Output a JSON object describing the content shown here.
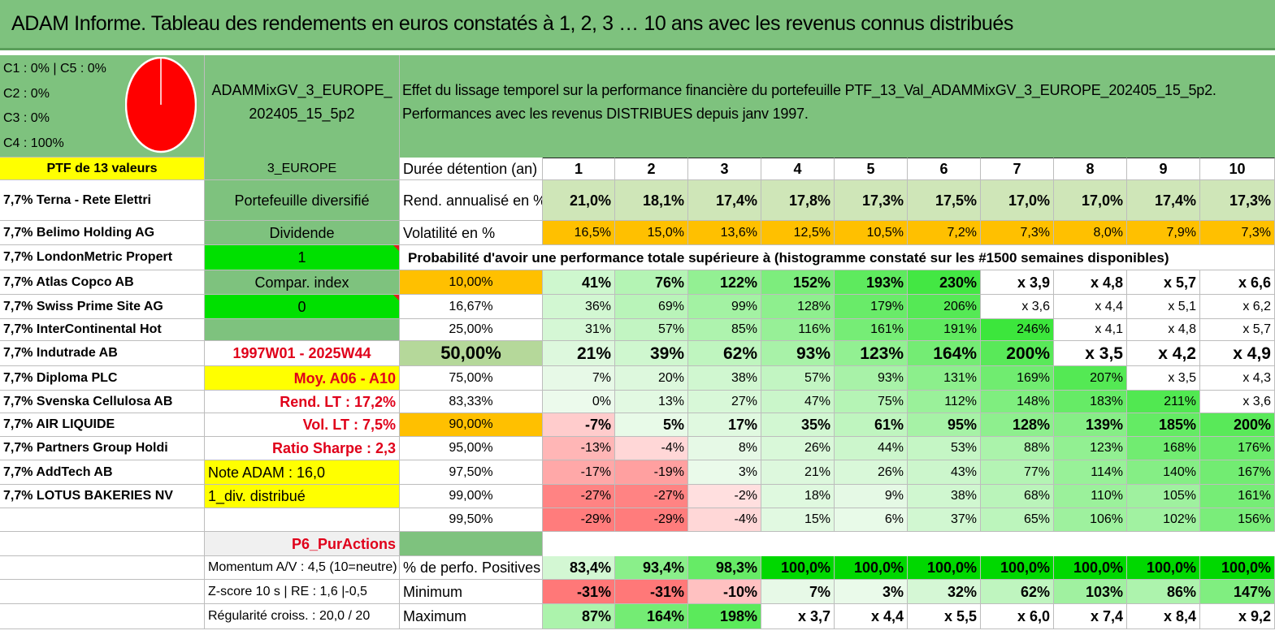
{
  "title": "ADAM Informe. Tableau des rendements en euros constatés à 1, 2, 3 … 10 ans avec les revenus connus distribués",
  "pie_legend": [
    "C1 : 0% | C5 : 0%",
    "C2 : 0%",
    "C3 : 0%",
    "C4 : 100%"
  ],
  "pie_chart": {
    "slices": [
      {
        "name": "C4",
        "value": 100,
        "color": "#ff0000"
      }
    ]
  },
  "portfolio_name": "ADAMMixGV_3_EUROPE_202405_15_5p2",
  "description": "Effet du lissage temporel sur la performance financière du portefeuille PTF_13_Val_ADAMMixGV_3_EUROPE_202405_15_5p2. Performances avec les revenus DISTRIBUES depuis janv 1997.",
  "col_a": {
    "header": "PTF de 13 valeurs",
    "holdings": [
      "7,7% Terna - Rete Elettri",
      "7,7% Belimo Holding AG",
      "7,7% LondonMetric Propert",
      "7,7% Atlas Copco AB",
      "7,7% Swiss Prime Site AG",
      "7,7% InterContinental Hot",
      "7,7% Indutrade AB",
      "7,7% Diploma PLC",
      "7,7% Svenska Cellulosa AB",
      "7,7% AIR LIQUIDE",
      "7,7% Partners Group Holdi",
      "7,7% AddTech AB",
      "7,7% LOTUS BAKERIES NV"
    ]
  },
  "col_b": {
    "zone": "3_EUROPE",
    "diversification": "Portefeuille diversifié",
    "dividend_label": "Dividende",
    "dividend_value": "1",
    "compar_label": "Compar. index",
    "compar_value": "0",
    "period": "1997W01 - 2025W44",
    "moy": "Moy. A06 - A10",
    "rend_lt": "Rend. LT : 17,2%",
    "vol_lt": "Vol. LT : 7,5%",
    "sharpe": "Ratio Sharpe : 2,3",
    "note": "Note ADAM : 16,0",
    "div": "1_div. distribué",
    "strategy": "P6_PurActions",
    "momentum": "Momentum A/V : 4,5 (10=neutre)",
    "zscore": "Z-score 10 s | RE : 1,6 |-0,5",
    "regularite": "Régularité croiss. : 20,0 / 20"
  },
  "table": {
    "duration_label": "Durée détention (an)",
    "years": [
      "1",
      "2",
      "3",
      "4",
      "5",
      "6",
      "7",
      "8",
      "9",
      "10"
    ],
    "rend_label": "Rend. annualisé en %",
    "rend": [
      "21,0%",
      "18,1%",
      "17,4%",
      "17,8%",
      "17,3%",
      "17,5%",
      "17,0%",
      "17,0%",
      "17,4%",
      "17,3%"
    ],
    "vol_label": "Volatilité en %",
    "vol": [
      "16,5%",
      "15,0%",
      "13,6%",
      "12,5%",
      "10,5%",
      "7,2%",
      "7,3%",
      "8,0%",
      "7,9%",
      "7,3%"
    ],
    "proba_title": "Probabilité d'avoir une performance totale supérieure à (histogramme constaté sur les #1500 semaines disponibles)",
    "quantiles": [
      {
        "q": "10,00%",
        "v": [
          "41%",
          "76%",
          "122%",
          "152%",
          "193%",
          "230%",
          "x 3,9",
          "x 4,8",
          "x 5,7",
          "x 6,6"
        ]
      },
      {
        "q": "16,67%",
        "v": [
          "36%",
          "69%",
          "99%",
          "128%",
          "179%",
          "206%",
          "x 3,6",
          "x 4,4",
          "x 5,1",
          "x 6,2"
        ]
      },
      {
        "q": "25,00%",
        "v": [
          "31%",
          "57%",
          "85%",
          "116%",
          "161%",
          "191%",
          "246%",
          "x 4,1",
          "x 4,8",
          "x 5,7"
        ]
      },
      {
        "q": "50,00%",
        "v": [
          "21%",
          "39%",
          "62%",
          "93%",
          "123%",
          "164%",
          "200%",
          "x 3,5",
          "x 4,2",
          "x 4,9"
        ]
      },
      {
        "q": "75,00%",
        "v": [
          "7%",
          "20%",
          "38%",
          "57%",
          "93%",
          "131%",
          "169%",
          "207%",
          "x 3,5",
          "x 4,3"
        ]
      },
      {
        "q": "83,33%",
        "v": [
          "0%",
          "13%",
          "27%",
          "47%",
          "75%",
          "112%",
          "148%",
          "183%",
          "211%",
          "x 3,6"
        ]
      },
      {
        "q": "90,00%",
        "v": [
          "-7%",
          "5%",
          "17%",
          "35%",
          "61%",
          "95%",
          "128%",
          "139%",
          "185%",
          "200%"
        ]
      },
      {
        "q": "95,00%",
        "v": [
          "-13%",
          "-4%",
          "8%",
          "26%",
          "44%",
          "53%",
          "88%",
          "123%",
          "168%",
          "176%"
        ]
      },
      {
        "q": "97,50%",
        "v": [
          "-17%",
          "-19%",
          "3%",
          "21%",
          "26%",
          "43%",
          "77%",
          "114%",
          "140%",
          "167%"
        ]
      },
      {
        "q": "99,00%",
        "v": [
          "-27%",
          "-27%",
          "-2%",
          "18%",
          "9%",
          "38%",
          "68%",
          "110%",
          "105%",
          "161%"
        ]
      },
      {
        "q": "99,50%",
        "v": [
          "-29%",
          "-29%",
          "-4%",
          "15%",
          "6%",
          "37%",
          "65%",
          "106%",
          "102%",
          "156%"
        ]
      }
    ],
    "positive_label": "% de perfo. Positives",
    "positive": [
      "83,4%",
      "93,4%",
      "98,3%",
      "100,0%",
      "100,0%",
      "100,0%",
      "100,0%",
      "100,0%",
      "100,0%",
      "100,0%"
    ],
    "min_label": "Minimum",
    "min": [
      "-31%",
      "-31%",
      "-10%",
      "7%",
      "3%",
      "32%",
      "62%",
      "103%",
      "86%",
      "147%"
    ],
    "max_label": "Maximum",
    "max": [
      "87%",
      "164%",
      "198%",
      "x 3,7",
      "x 4,4",
      "x 5,5",
      "x 6,0",
      "x 7,4",
      "x 8,4",
      "x 9,2"
    ]
  }
}
